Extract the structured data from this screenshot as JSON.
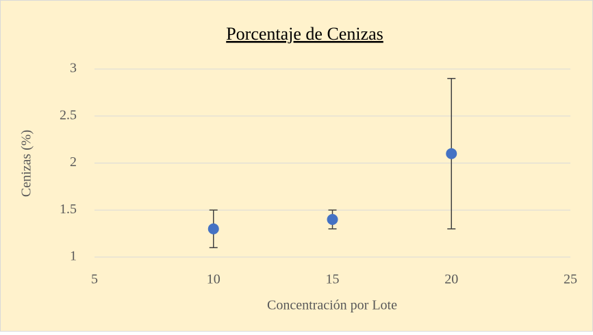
{
  "chart_data": {
    "type": "scatter",
    "title": "Porcentaje de Cenizas",
    "xlabel": "Concentración por Lote",
    "ylabel": "Cenizas (%)",
    "x": [
      10,
      15,
      20
    ],
    "values": [
      1.3,
      1.4,
      2.1
    ],
    "errors": [
      0.2,
      0.1,
      0.8
    ],
    "color": "#4472c4",
    "xlim": [
      5,
      25
    ],
    "xticks": [
      5,
      10,
      15,
      20,
      25
    ],
    "ylim": [
      1,
      3
    ],
    "yticks": [
      1,
      1.5,
      2,
      2.5,
      3
    ],
    "grid": true
  }
}
